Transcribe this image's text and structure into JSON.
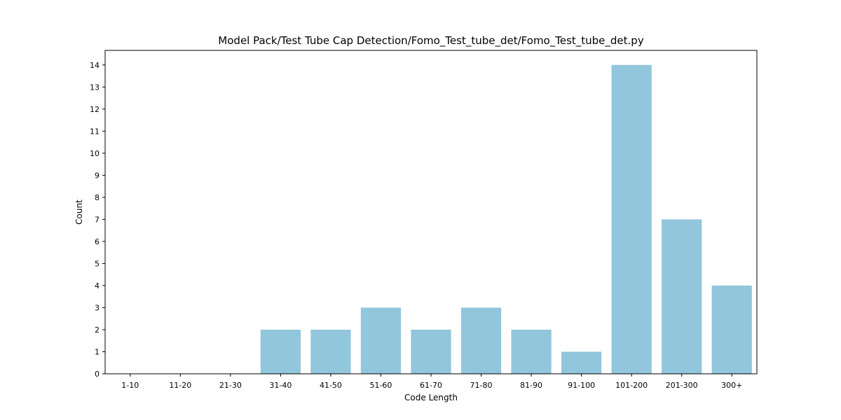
{
  "chart_data": {
    "type": "bar",
    "title": "Model Pack/Test Tube Cap Detection/Fomo_Test_tube_det/Fomo_Test_tube_det.py",
    "xlabel": "Code Length",
    "ylabel": "Count",
    "categories": [
      "1-10",
      "11-20",
      "21-30",
      "31-40",
      "41-50",
      "51-60",
      "61-70",
      "71-80",
      "81-90",
      "91-100",
      "101-200",
      "201-300",
      "300+"
    ],
    "values": [
      0,
      0,
      0,
      2,
      2,
      3,
      2,
      3,
      2,
      1,
      14,
      7,
      4
    ],
    "ylim": [
      0,
      14.66
    ],
    "yticks": [
      0,
      1,
      2,
      3,
      4,
      5,
      6,
      7,
      8,
      9,
      10,
      11,
      12,
      13,
      14
    ],
    "bar_color": "#92c6dc",
    "grid": false,
    "legend": "none"
  }
}
